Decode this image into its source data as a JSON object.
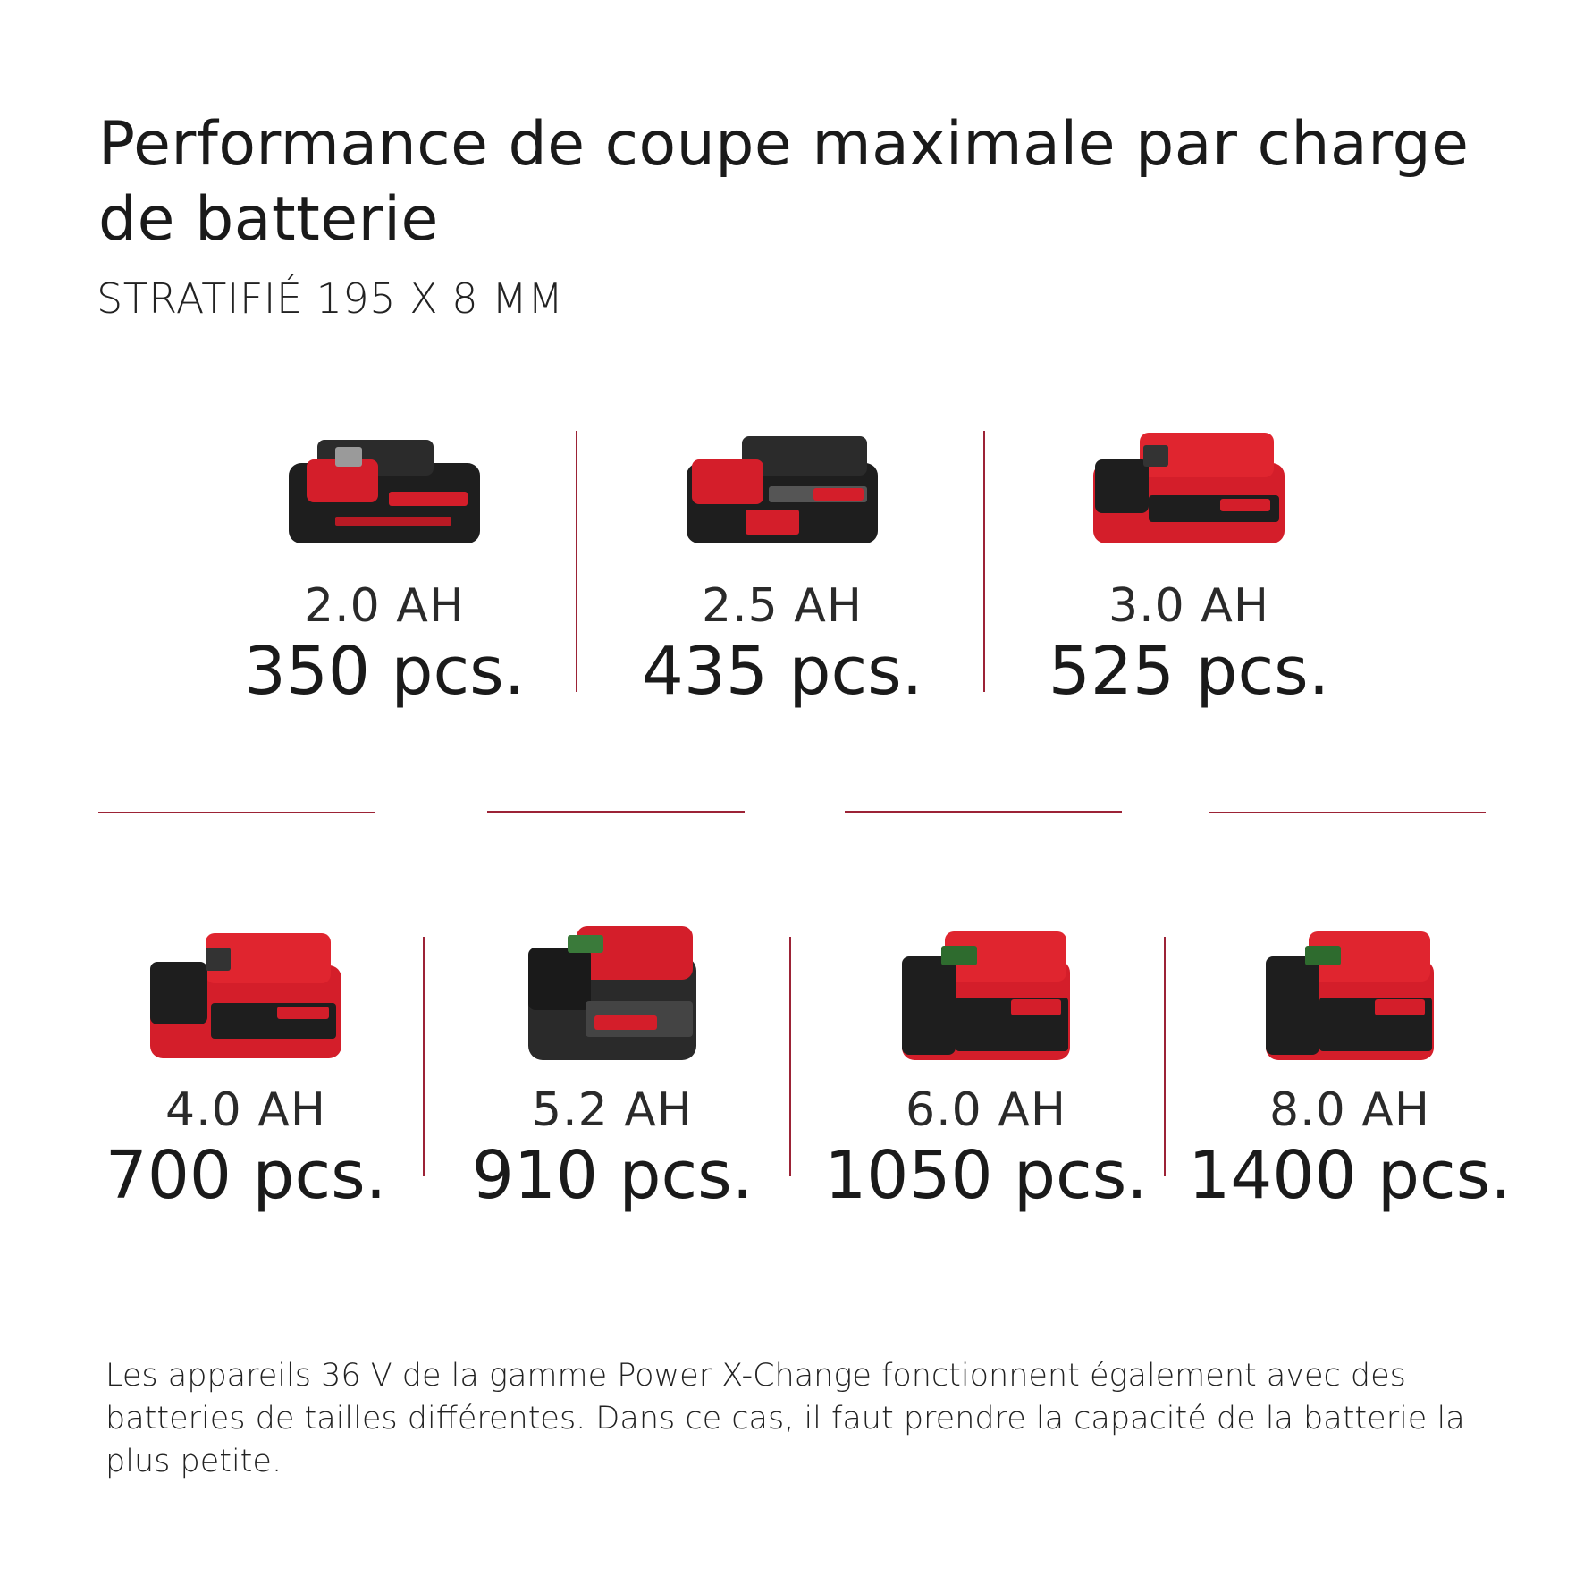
{
  "header": {
    "title": "Performance de coupe maximale par charge de batterie",
    "subtitle": "STRATIFIÉ 195 X 8 MM"
  },
  "batteries": [
    {
      "capacity": "2.0 AH",
      "pieces": "350 pcs.",
      "body_color": "#1e1e1e",
      "accent": "#d41e2a",
      "icon": "battery-pack-icon"
    },
    {
      "capacity": "2.5 AH",
      "pieces": "435 pcs.",
      "body_color": "#1e1e1e",
      "accent": "#d41e2a",
      "icon": "battery-pack-icon"
    },
    {
      "capacity": "3.0 AH",
      "pieces": "525 pcs.",
      "body_color": "#d41e2a",
      "accent": "#1e1e1e",
      "icon": "battery-pack-icon"
    },
    {
      "capacity": "4.0 AH",
      "pieces": "700 pcs.",
      "body_color": "#d41e2a",
      "accent": "#1e1e1e",
      "icon": "battery-pack-icon"
    },
    {
      "capacity": "5.2 AH",
      "pieces": "910 pcs.",
      "body_color": "#2a2a2a",
      "accent": "#d41e2a",
      "icon": "battery-pack-icon"
    },
    {
      "capacity": "6.0 AH",
      "pieces": "1050 pcs.",
      "body_color": "#d41e2a",
      "accent": "#1e1e1e",
      "icon": "battery-pack-icon"
    },
    {
      "capacity": "8.0 AH",
      "pieces": "1400 pcs.",
      "body_color": "#d41e2a",
      "accent": "#1e1e1e",
      "icon": "battery-pack-icon"
    }
  ],
  "footnote": "Les appareils 36 V de la gamme Power X-Change fonctionnent également avec des batteries de tailles différentes. Dans ce cas, il faut prendre la capacité de la batterie la plus petite.",
  "colors": {
    "divider": "#9c2336",
    "brand_red": "#d41e2a"
  }
}
